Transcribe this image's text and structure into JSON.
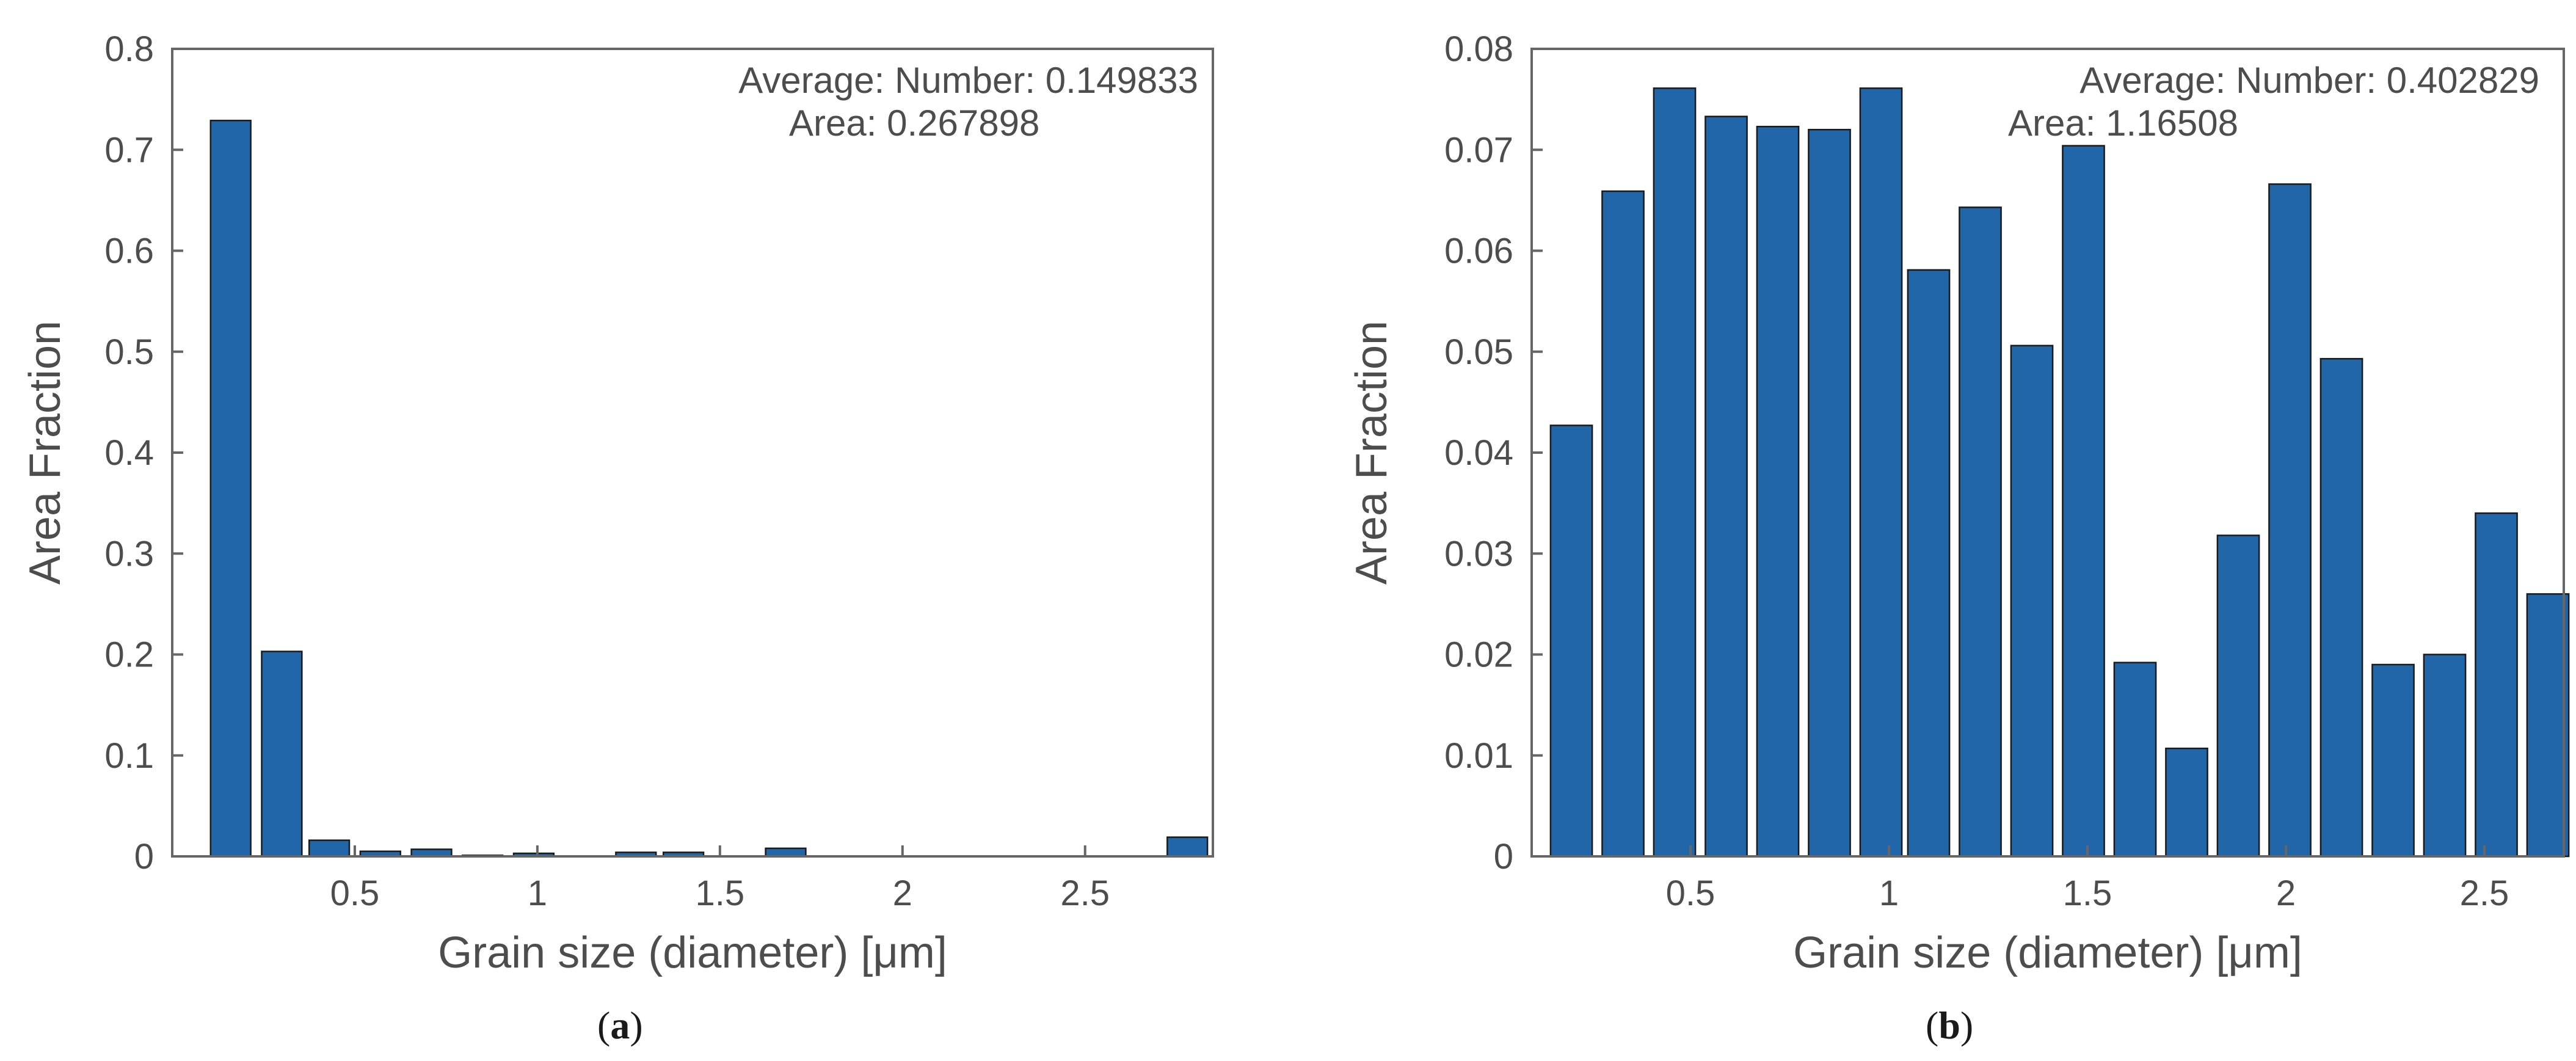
{
  "figure": {
    "bar_color": "#2166a8",
    "bar_edge_color": "#1a1a1a",
    "axis_color": "#666666"
  },
  "chart_data": [
    {
      "type": "bar",
      "caption": {
        "open": "(",
        "letter": "a",
        "close": ")"
      },
      "xlabel": "Grain size (diameter) [μm]",
      "ylabel": "Area Fraction",
      "xlim": [
        0.0,
        2.85
      ],
      "ylim": [
        0,
        0.8
      ],
      "xticks": [
        0.5,
        1,
        1.5,
        2,
        2.5
      ],
      "xtick_labels": [
        "0.5",
        "1",
        "1.5",
        "2",
        "2.5"
      ],
      "yticks": [
        0,
        0.1,
        0.2,
        0.3,
        0.4,
        0.5,
        0.6,
        0.7,
        0.8
      ],
      "ytick_labels": [
        "0",
        "0.1",
        "0.2",
        "0.3",
        "0.4",
        "0.5",
        "0.6",
        "0.7",
        "0.8"
      ],
      "bar_width": 0.11,
      "x": [
        0.16,
        0.3,
        0.43,
        0.57,
        0.71,
        0.85,
        0.99,
        1.13,
        1.27,
        1.4,
        1.54,
        1.68,
        1.82,
        1.96,
        2.09,
        2.23,
        2.37,
        2.51,
        2.65,
        2.78
      ],
      "values": [
        0.729,
        0.203,
        0.016,
        0.005,
        0.007,
        0.001,
        0.003,
        0.0,
        0.004,
        0.004,
        0.0,
        0.008,
        0.0,
        0.0,
        0.0,
        0.0,
        0.0,
        0.0,
        0.0,
        0.019
      ],
      "annotation": {
        "line1": "Average: Number: 0.149833",
        "line2": "Area: 0.267898"
      },
      "grid": false
    },
    {
      "type": "bar",
      "caption": {
        "open": "(",
        "letter": "b",
        "close": ")"
      },
      "xlabel": "Grain size (diameter) [μm]",
      "ylabel": "Area Fraction",
      "xlim": [
        0.1,
        2.7
      ],
      "ylim": [
        0,
        0.08
      ],
      "xticks": [
        0.5,
        1,
        1.5,
        2,
        2.5
      ],
      "xtick_labels": [
        "0.5",
        "1",
        "1.5",
        "2",
        "2.5"
      ],
      "yticks": [
        0,
        0.01,
        0.02,
        0.03,
        0.04,
        0.05,
        0.06,
        0.07,
        0.08
      ],
      "ytick_labels": [
        "0",
        "0.01",
        "0.02",
        "0.03",
        "0.04",
        "0.05",
        "0.06",
        "0.07",
        "0.08"
      ],
      "bar_width": 0.105,
      "x": [
        0.2,
        0.33,
        0.46,
        0.59,
        0.72,
        0.85,
        0.98,
        1.1,
        1.23,
        1.36,
        1.49,
        1.62,
        1.75,
        1.88,
        2.01,
        2.14,
        2.27,
        2.4,
        2.53,
        2.66
      ],
      "values": [
        0.0427,
        0.0659,
        0.0761,
        0.0733,
        0.0723,
        0.072,
        0.0761,
        0.0581,
        0.0643,
        0.0506,
        0.0704,
        0.0192,
        0.0107,
        0.0318,
        0.0666,
        0.0493,
        0.019,
        0.02,
        0.034,
        0.026
      ],
      "annotation": {
        "line1": "Average: Number: 0.402829",
        "line2": "Area: 1.16508"
      },
      "grid": false
    }
  ]
}
